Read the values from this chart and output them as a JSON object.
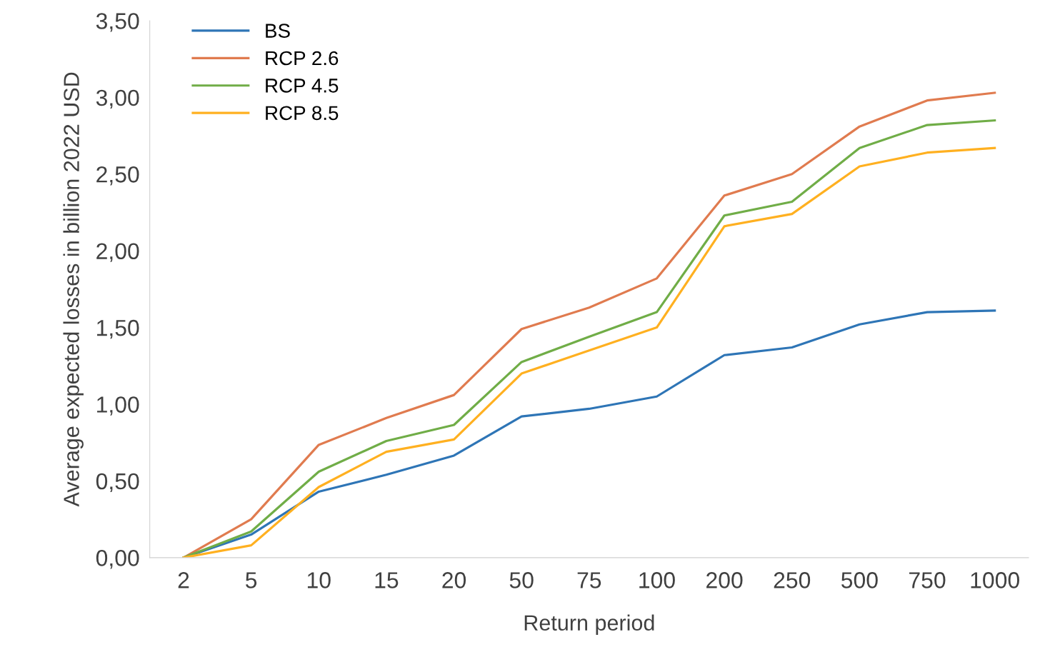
{
  "chart_data": {
    "type": "line",
    "xlabel": "Return period",
    "ylabel": "Average expected losses in billion 2022 USD",
    "categories": [
      "2",
      "5",
      "10",
      "15",
      "20",
      "50",
      "75",
      "100",
      "200",
      "250",
      "500",
      "750",
      "1000"
    ],
    "series": [
      {
        "name": "BS",
        "color": "#2e75b6",
        "values": [
          0,
          0.15,
          0.43,
          0.54,
          0.665,
          0.92,
          0.97,
          1.05,
          1.32,
          1.37,
          1.52,
          1.6,
          1.61
        ]
      },
      {
        "name": "RCP 2.6",
        "color": "#e07b4f",
        "values": [
          0,
          0.25,
          0.735,
          0.91,
          1.06,
          1.49,
          1.63,
          1.82,
          2.36,
          2.5,
          2.81,
          2.98,
          3.03
        ]
      },
      {
        "name": "RCP 4.5",
        "color": "#70ad47",
        "values": [
          0,
          0.17,
          0.56,
          0.76,
          0.865,
          1.275,
          1.44,
          1.6,
          2.23,
          2.32,
          2.67,
          2.82,
          2.85
        ]
      },
      {
        "name": "RCP 8.5",
        "color": "#ffb020",
        "values": [
          0,
          0.08,
          0.46,
          0.69,
          0.77,
          1.2,
          1.35,
          1.5,
          2.16,
          2.24,
          2.55,
          2.64,
          2.67
        ]
      }
    ],
    "ylim": [
      0,
      3.5
    ],
    "yticks": [
      {
        "value": 0,
        "label": "0,00"
      },
      {
        "value": 0.5,
        "label": "0,50"
      },
      {
        "value": 1,
        "label": "1,00"
      },
      {
        "value": 1.5,
        "label": "1,50"
      },
      {
        "value": 2,
        "label": "2,00"
      },
      {
        "value": 2.5,
        "label": "2,50"
      },
      {
        "value": 3,
        "label": "3,00"
      },
      {
        "value": 3.5,
        "label": "3,50"
      }
    ],
    "grid": false,
    "legend": "top left",
    "marker": "none",
    "line_style": "solid"
  }
}
